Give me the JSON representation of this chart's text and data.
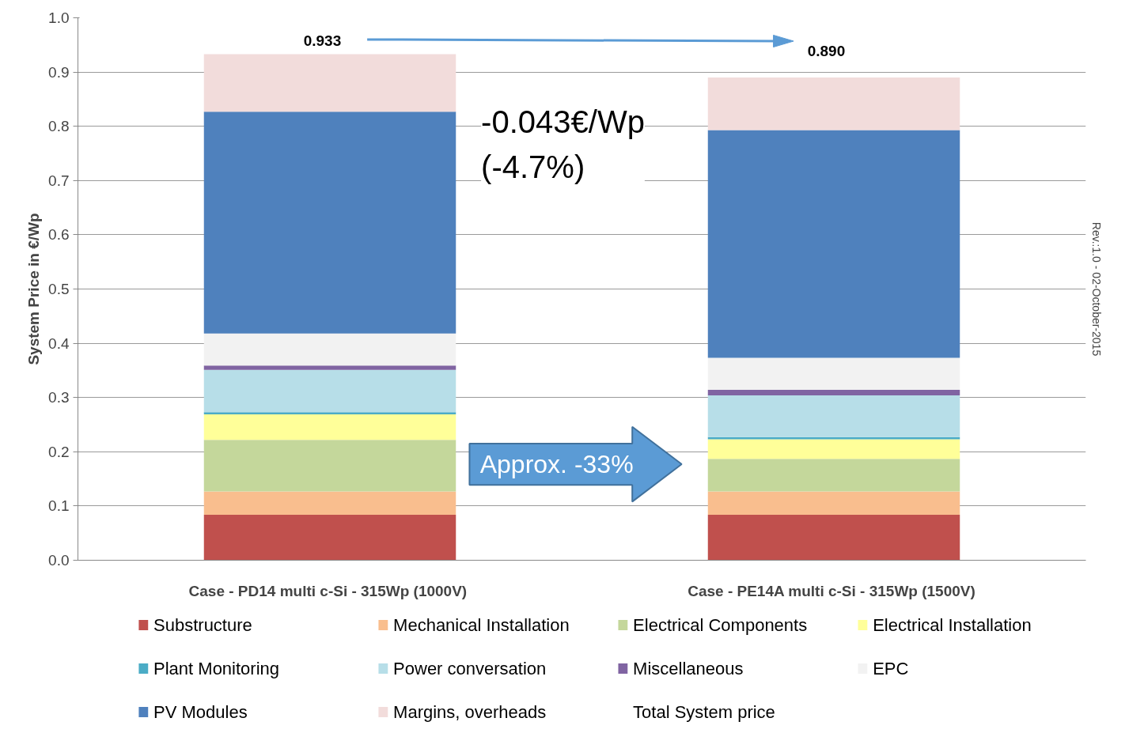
{
  "chart_data": {
    "type": "bar",
    "stacked": true,
    "ylabel": "System Price in €/Wp",
    "categories": [
      "Case  - PD14 multi c-Si - 315Wp (1000V)",
      "Case  - PE14A multi c-Si - 315Wp (1500V)"
    ],
    "series": [
      {
        "name": "Substructure",
        "color": "#c0504d",
        "values": [
          0.084,
          0.084
        ]
      },
      {
        "name": "Mechanical Installation",
        "color": "#f9be8e",
        "values": [
          0.043,
          0.043
        ]
      },
      {
        "name": "Electrical Components",
        "color": "#c4d79b",
        "values": [
          0.095,
          0.06
        ]
      },
      {
        "name": "Electrical Installation",
        "color": "#ffff99",
        "values": [
          0.047,
          0.036
        ]
      },
      {
        "name": "Plant Monitoring",
        "color": "#4bacc6",
        "values": [
          0.004,
          0.004
        ]
      },
      {
        "name": "Power conversation",
        "color": "#b7dee8",
        "values": [
          0.078,
          0.077
        ]
      },
      {
        "name": "Miscellaneous",
        "color": "#8064a2",
        "values": [
          0.008,
          0.01
        ]
      },
      {
        "name": "EPC",
        "color": "#f2f2f2",
        "values": [
          0.059,
          0.059
        ]
      },
      {
        "name": "PV Modules",
        "color": "#4f81bd",
        "values": [
          0.409,
          0.42
        ]
      },
      {
        "name": "Margins, overheads",
        "color": "#f2dcdb",
        "values": [
          0.106,
          0.097
        ]
      }
    ],
    "totals": [
      "0.933",
      "0.890"
    ],
    "ylim": [
      0,
      1.0
    ],
    "yticks": [
      {
        "value": 0,
        "label": "0.0"
      },
      0.1,
      0.2,
      0.3,
      0.4,
      0.5,
      0.6,
      0.7,
      0.8,
      0.9,
      {
        "value": 1,
        "label": "1.0"
      }
    ],
    "grid": "y",
    "legend": "bottom",
    "annotations": [
      "-0.043€/Wp\n(-4.7%)",
      "Approx. -33%",
      "Rev.:1.0 - 02-October-2015",
      "Total System price"
    ]
  }
}
